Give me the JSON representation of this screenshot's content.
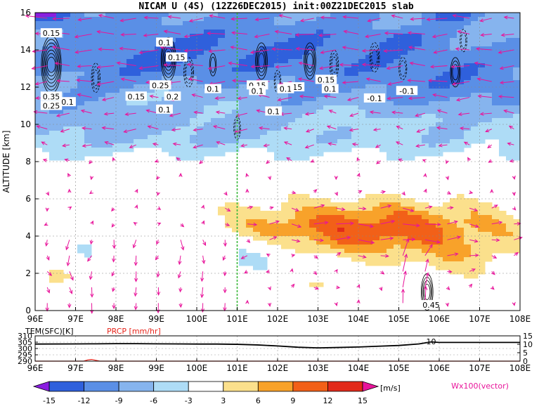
{
  "chart_data": {
    "type": "heatmap",
    "title": "NICAM U (4S) (12Z26DEC2015) init:00Z21DEC2015 slab",
    "ylabel": "ALTITUDE [km]",
    "x_ticks": [
      "96E",
      "97E",
      "98E",
      "99E",
      "100E",
      "101E",
      "102E",
      "103E",
      "104E",
      "105E",
      "106E",
      "107E",
      "108E"
    ],
    "x_range": [
      96,
      108
    ],
    "y_ticks": [
      "0",
      "2",
      "4",
      "6",
      "8",
      "10",
      "12",
      "14",
      "16"
    ],
    "y_range": [
      0,
      16
    ],
    "reference_line_lon": 101,
    "color_levels": [
      "-15",
      "-12",
      "-9",
      "-6",
      "-3",
      "3",
      "6",
      "9",
      "12",
      "15"
    ],
    "color_units": "[m/s]",
    "colors": {
      "le_-15": "#8a1ee0",
      "-15_-12": "#2f60dc",
      "-12_-9": "#5a8fe6",
      "-9_-6": "#86b4ee",
      "-6_-3": "#aedcf6",
      "-3_3": "#ffffff",
      "3_6": "#fbe08c",
      "6_9": "#f8a22a",
      "9_12": "#f26018",
      "12_15": "#e22a1a",
      "ge_15": "#c01010",
      "vector": "#e8149a",
      "reference_line": "#3bb83b"
    },
    "vector_label": "Wx100(vector)",
    "contour_labels": [
      "0.15",
      "0.35",
      "0.25",
      "0.1",
      "0.15",
      "0.25",
      "0.2",
      "0.15",
      "0.1",
      "0.1",
      "0.15",
      "0.1",
      "0.15",
      "0.1",
      "0.1",
      "-0.1",
      "-0.1",
      "0.1",
      "0.1",
      "0.15",
      "0.45"
    ],
    "bottom_panel": {
      "type": "line",
      "left_label": "TEM(SFC)[K]",
      "right_label": "PRCP [mm/hr]",
      "left_ticks": [
        "310",
        "305",
        "300",
        "295",
        "290"
      ],
      "left_range": [
        290,
        310
      ],
      "right_ticks": [
        "15",
        "10",
        "5",
        "0"
      ],
      "right_range": [
        0,
        15
      ],
      "x_ticks": [
        "96E",
        "97E",
        "98E",
        "99E",
        "100E",
        "101E",
        "102E",
        "103E",
        "104E",
        "105E",
        "106E",
        "107E",
        "108E"
      ],
      "temperature_series": {
        "lon": [
          96.0,
          97.0,
          97.5,
          98.0,
          98.5,
          99.0,
          99.5,
          100.0,
          100.5,
          101.0,
          101.5,
          102.0,
          102.5,
          103.0,
          103.5,
          104.0,
          104.5,
          105.0,
          105.5,
          105.8,
          106.0,
          106.5,
          107.0,
          108.0
        ],
        "values": [
          303.5,
          303.6,
          303.7,
          303.8,
          303.8,
          303.7,
          303.6,
          303.5,
          303.5,
          303.3,
          302.8,
          302.0,
          301.0,
          300.5,
          300.8,
          301.2,
          301.8,
          302.4,
          303.6,
          305.2,
          304.8,
          304.8,
          304.8,
          304.8
        ]
      },
      "precip_series": {
        "lon": [
          96.0,
          97.2,
          97.3,
          97.4,
          97.5,
          97.6,
          108.0
        ],
        "values": [
          0,
          0,
          0.7,
          1.0,
          0.5,
          0,
          0
        ]
      },
      "prcp_annotation": "10"
    }
  }
}
